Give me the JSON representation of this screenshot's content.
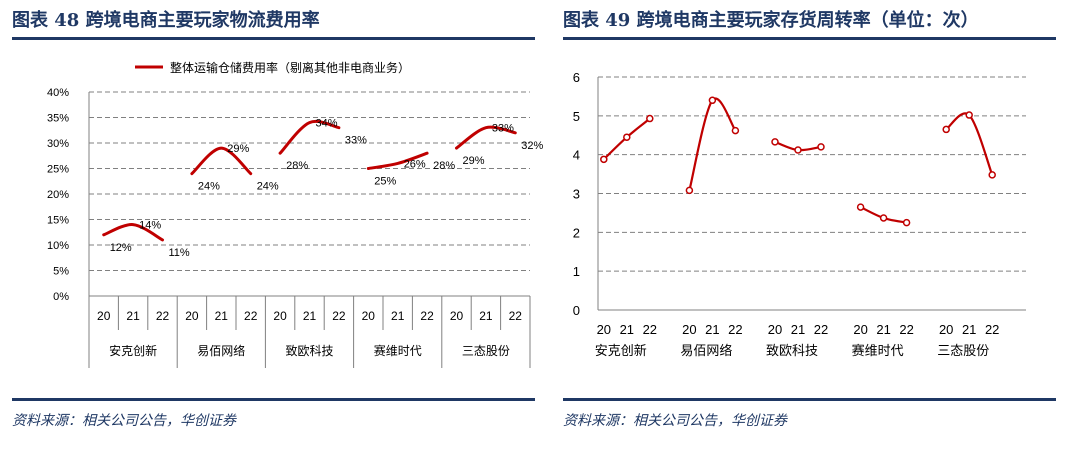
{
  "left_panel": {
    "fig_title": "图表 48  跨境电商主要玩家物流费用率",
    "source": "资料来源：相关公司公告，华创证券"
  },
  "right_panel": {
    "fig_title": "图表 49  跨境电商主要玩家存货周转率（单位：次）",
    "source": "资料来源：相关公司公告，华创证券"
  },
  "colors": {
    "line": "#c00000",
    "grid": "#808080",
    "title": "#1f3864",
    "marker_fill": "#ffffff"
  },
  "chart_data": [
    {
      "type": "line",
      "title": "",
      "legend": {
        "label": "整体运输仓储费用率（剔离其他非电商业务）",
        "position": "top"
      },
      "grid": true,
      "ylim": [
        0,
        40
      ],
      "y_ticks": [
        "0%",
        "5%",
        "10%",
        "15%",
        "20%",
        "25%",
        "30%",
        "35%",
        "40%"
      ],
      "groups": [
        "安克创新",
        "易佰网络",
        "致欧科技",
        "赛维时代",
        "三态股份"
      ],
      "year_labels": [
        "20",
        "21",
        "22"
      ],
      "series": [
        {
          "group": "安克创新",
          "values": [
            12,
            14,
            11
          ],
          "labels": [
            "12%",
            "14%",
            "11%"
          ]
        },
        {
          "group": "易佰网络",
          "values": [
            24,
            29,
            24
          ],
          "labels": [
            "24%",
            "29%",
            "24%"
          ]
        },
        {
          "group": "致欧科技",
          "values": [
            28,
            34,
            33
          ],
          "labels": [
            "28%",
            "34%",
            "33%"
          ]
        },
        {
          "group": "赛维时代",
          "values": [
            25,
            26,
            28
          ],
          "labels": [
            "25%",
            "26%",
            "28%"
          ]
        },
        {
          "group": "三态股份",
          "values": [
            29,
            33,
            32
          ],
          "labels": [
            "29%",
            "33%",
            "32%"
          ]
        }
      ]
    },
    {
      "type": "line",
      "title": "",
      "grid": true,
      "ylim": [
        0,
        6
      ],
      "y_ticks": [
        "0",
        "1",
        "2",
        "3",
        "4",
        "5",
        "6"
      ],
      "groups": [
        "安克创新",
        "易佰网络",
        "致欧科技",
        "赛维时代",
        "三态股份"
      ],
      "year_labels": [
        "20",
        "21",
        "22"
      ],
      "series": [
        {
          "group": "安克创新",
          "values": [
            3.88,
            4.45,
            4.93
          ]
        },
        {
          "group": "易佰网络",
          "values": [
            3.08,
            5.4,
            4.62
          ]
        },
        {
          "group": "致欧科技",
          "values": [
            4.33,
            4.12,
            4.2
          ]
        },
        {
          "group": "赛维时代",
          "values": [
            2.65,
            2.37,
            2.25
          ]
        },
        {
          "group": "三态股份",
          "values": [
            4.65,
            5.02,
            3.48
          ]
        }
      ]
    }
  ]
}
